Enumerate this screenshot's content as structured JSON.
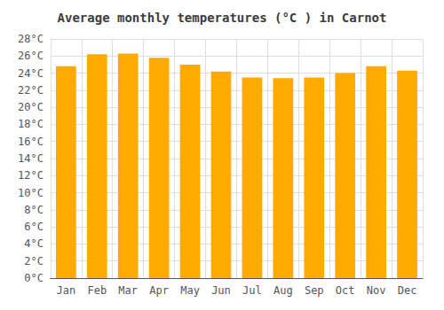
{
  "chart_data": {
    "type": "bar",
    "title": "Average monthly temperatures (°C ) in Carnot",
    "categories": [
      "Jan",
      "Feb",
      "Mar",
      "Apr",
      "May",
      "Jun",
      "Jul",
      "Aug",
      "Sep",
      "Oct",
      "Nov",
      "Dec"
    ],
    "values": [
      24.8,
      26.2,
      26.3,
      25.8,
      25.0,
      24.2,
      23.5,
      23.4,
      23.5,
      24.0,
      24.8,
      24.3
    ],
    "color": "#FFAA00",
    "ylim": [
      0,
      28
    ],
    "yticks": [
      {
        "value": 0,
        "label": "0°C"
      },
      {
        "value": 2,
        "label": "2°C"
      },
      {
        "value": 4,
        "label": "4°C"
      },
      {
        "value": 6,
        "label": "6°C"
      },
      {
        "value": 8,
        "label": "8°C"
      },
      {
        "value": 10,
        "label": "10°C"
      },
      {
        "value": 12,
        "label": "12°C"
      },
      {
        "value": 14,
        "label": "14°C"
      },
      {
        "value": 16,
        "label": "16°C"
      },
      {
        "value": 18,
        "label": "18°C"
      },
      {
        "value": 20,
        "label": "20°C"
      },
      {
        "value": 22,
        "label": "22°C"
      },
      {
        "value": 24,
        "label": "24°C"
      },
      {
        "value": 26,
        "label": "26°C"
      },
      {
        "value": 28,
        "label": "28°C"
      }
    ],
    "grid": true
  }
}
